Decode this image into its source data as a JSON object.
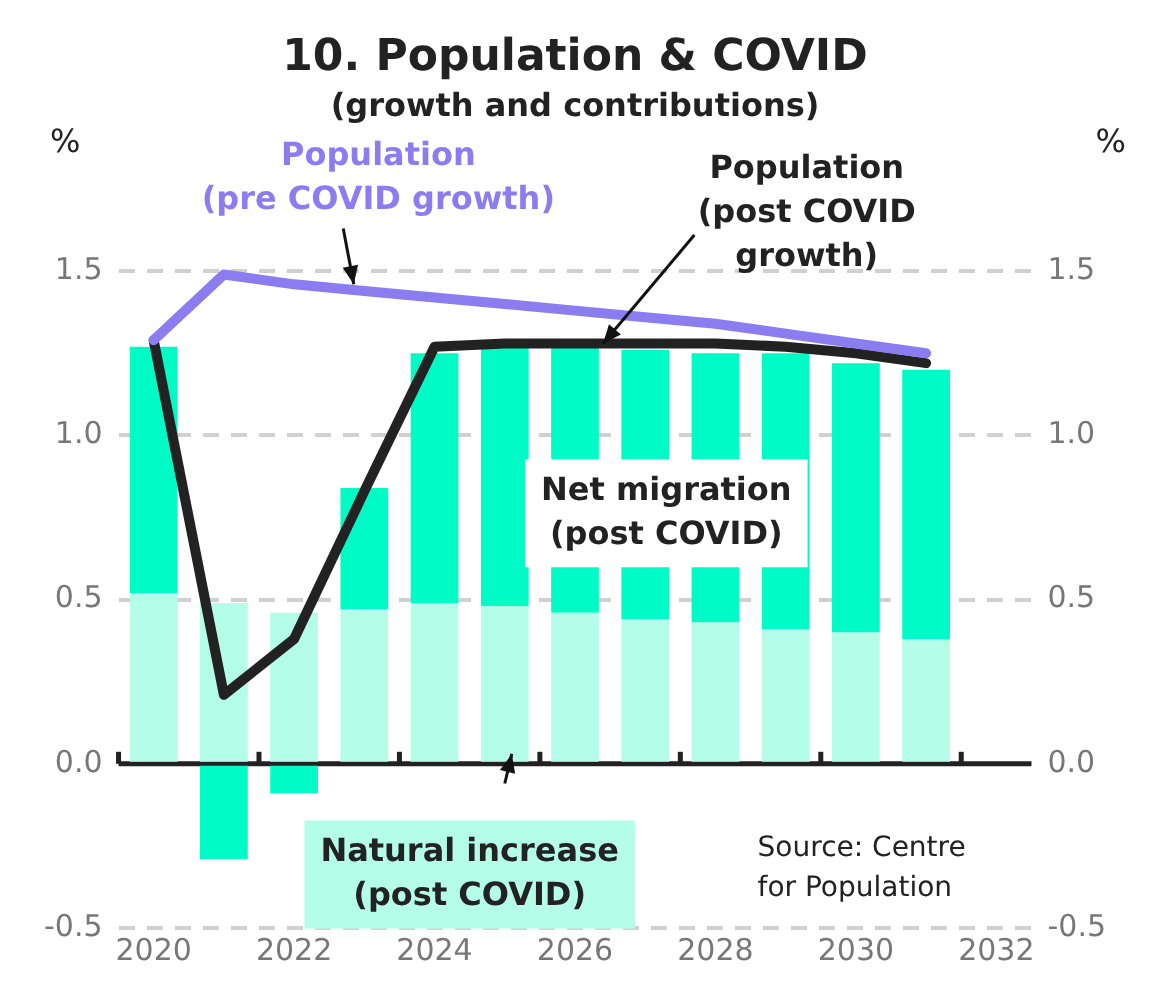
{
  "chart_data": {
    "type": "bar",
    "title": "10. Population & COVID",
    "subtitle": "(growth and contributions)",
    "ylabel": "%",
    "y2label": "%",
    "x": [
      2020,
      2021,
      2022,
      2023,
      2024,
      2025,
      2026,
      2027,
      2028,
      2029,
      2030,
      2031
    ],
    "series": [
      {
        "name": "Natural increase\n(post COVID)",
        "color": "#b3fde9",
        "values": [
          0.52,
          0.49,
          0.46,
          0.47,
          0.49,
          0.48,
          0.46,
          0.44,
          0.43,
          0.41,
          0.4,
          0.38
        ]
      },
      {
        "name": "Net migration\n(post COVID)",
        "color": "#00fbc6",
        "values": [
          0.75,
          -0.29,
          -0.09,
          0.37,
          0.76,
          0.79,
          0.81,
          0.82,
          0.82,
          0.84,
          0.82,
          0.82
        ]
      },
      {
        "type": "line",
        "name": "Population\n(pre COVID growth)",
        "color": "#8b7cf0",
        "values": [
          1.29,
          1.49,
          1.46,
          1.44,
          1.42,
          1.4,
          1.38,
          1.36,
          1.34,
          1.31,
          1.28,
          1.25
        ]
      },
      {
        "type": "line",
        "name": "Population\n(post COVID\ngrowth)",
        "color": "#222222",
        "values": [
          1.29,
          0.21,
          0.38,
          0.83,
          1.27,
          1.28,
          1.28,
          1.28,
          1.28,
          1.27,
          1.25,
          1.22
        ]
      }
    ],
    "stacked": true,
    "xlim": [
      2019.5,
      2032.5
    ],
    "xticks": [
      2020,
      2022,
      2024,
      2026,
      2028,
      2030,
      2032
    ],
    "ylim": [
      -0.5,
      1.5
    ],
    "yticks": [
      -0.5,
      {
        "value": 0,
        "label": "0.0"
      },
      0.5,
      {
        "value": 1,
        "label": "1.0"
      },
      1.5
    ],
    "y2lim": [
      -0.5,
      1.5
    ],
    "y2ticks": [
      -0.5,
      {
        "value": 0,
        "label": "0.0"
      },
      0.5,
      {
        "value": 1,
        "label": "1.0"
      },
      1.5
    ],
    "grid": "y",
    "legend": false,
    "marker": "none",
    "annotations": [
      "Source: Centre\nfor Population"
    ]
  }
}
